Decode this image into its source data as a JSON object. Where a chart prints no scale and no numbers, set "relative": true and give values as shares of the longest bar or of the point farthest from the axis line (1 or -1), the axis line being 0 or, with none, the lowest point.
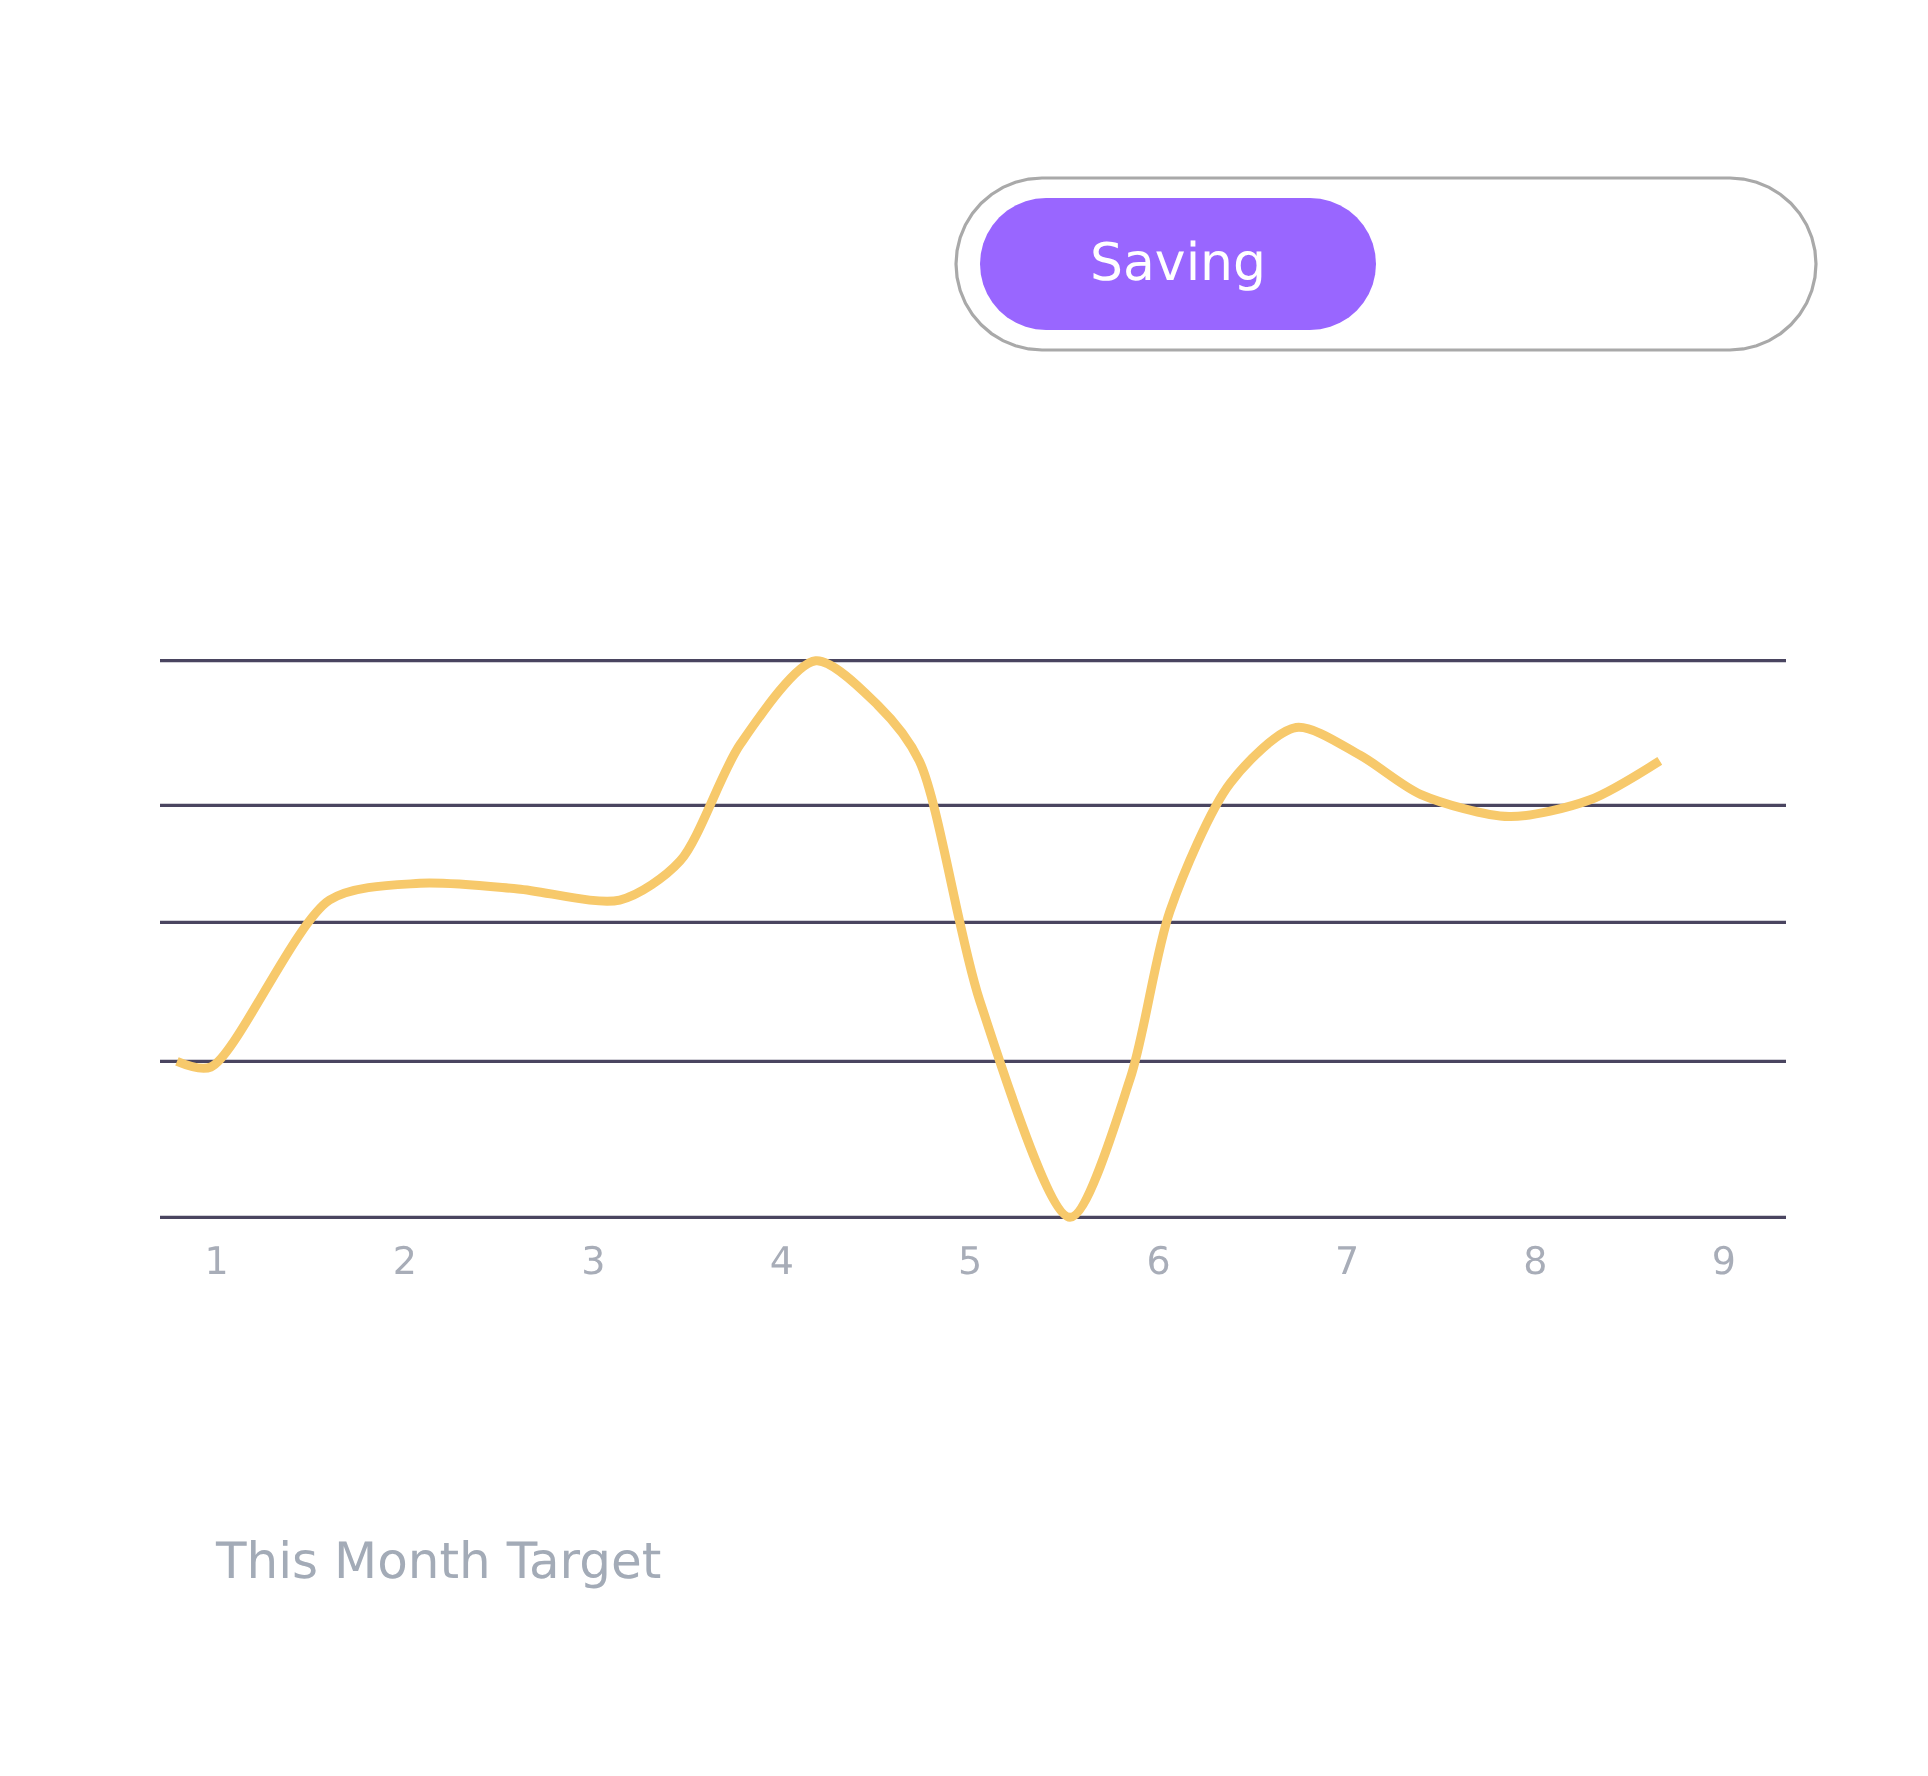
{
  "chart_data": {
    "type": "line",
    "title": "Saving",
    "relative": true,
    "x": [
      0.79,
      0.97,
      1.6,
      2.08,
      2.6,
      3.14,
      3.46,
      3.78,
      4.18,
      4.51,
      4.73,
      5.05,
      5.53,
      5.85,
      6.06,
      6.38,
      6.73,
      7.07,
      7.39,
      7.86,
      8.29,
      8.66
    ],
    "series": [
      {
        "color": "#f7c96b",
        "values": [
          0.28,
          0.27,
          0.57,
          0.6,
          0.59,
          0.57,
          0.64,
          0.85,
          1.0,
          0.92,
          0.82,
          0.39,
          0.0,
          0.25,
          0.55,
          0.78,
          0.88,
          0.83,
          0.76,
          0.72,
          0.75,
          0.82
        ]
      }
    ],
    "xlim": [
      0.7,
      9.33
    ],
    "xticks": [
      1,
      2,
      3,
      4,
      5,
      6,
      7,
      8,
      9
    ],
    "ref_lines": [
      {
        "axis": "y",
        "value": 0.0,
        "color": "#4a4560"
      },
      {
        "axis": "y",
        "value": 0.28,
        "color": "#4a4560"
      },
      {
        "axis": "y",
        "value": 0.53,
        "color": "#4a4560"
      },
      {
        "axis": "y",
        "value": 0.74,
        "color": "#4a4560"
      },
      {
        "axis": "y",
        "value": 1.0,
        "color": "#4a4560"
      }
    ],
    "marker": "none",
    "line_style": "solid",
    "annotations": [
      "This Month Target"
    ]
  }
}
